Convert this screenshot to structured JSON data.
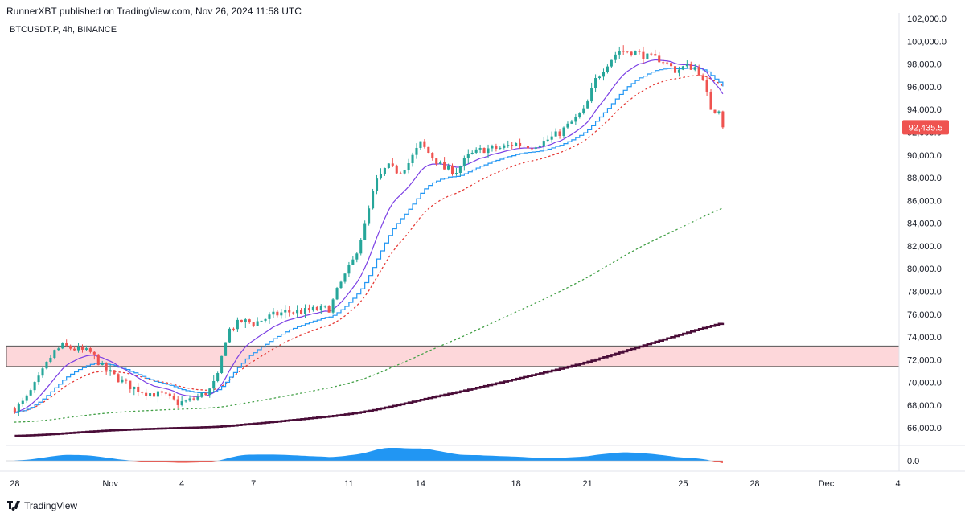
{
  "header": {
    "attribution": "RunnerXBT published on TradingView.com, Nov 26, 2024 11:58 UTC",
    "symbol": "BTCUSDT.P, 4h, BINANCE"
  },
  "footer": {
    "brand": "TradingView"
  },
  "colors": {
    "bull": "#26a69a",
    "bear": "#ef5350",
    "ema_fast": "#7b3fe4",
    "ema_step": "#2196f3",
    "dots_red": "#e53935",
    "dots_green": "#43a047",
    "long_ma": "#4a0d38",
    "zone_fill": "#fdd7da",
    "osc_pos": "#2196f3",
    "osc_neg": "#f44336",
    "price_tag": "#ef5350"
  },
  "chart_data": {
    "type": "line",
    "y_ticks": [
      "102,000.0",
      "100,000.0",
      "98,000.0",
      "96,000.0",
      "94,000.0",
      "92,000.0",
      "90,000.0",
      "88,000.0",
      "86,000.0",
      "84,000.0",
      "82,000.0",
      "80,000.0",
      "78,000.0",
      "76,000.0",
      "74,000.0",
      "72,000.0",
      "70,000.0",
      "68,000.0",
      "66,000.0"
    ],
    "ylim": [
      64600,
      102500
    ],
    "x_ticks": [
      {
        "label": "28",
        "day": 0
      },
      {
        "label": "Nov",
        "day": 4
      },
      {
        "label": "4",
        "day": 7
      },
      {
        "label": "7",
        "day": 10
      },
      {
        "label": "11",
        "day": 14
      },
      {
        "label": "14",
        "day": 17
      },
      {
        "label": "18",
        "day": 21
      },
      {
        "label": "21",
        "day": 24
      },
      {
        "label": "25",
        "day": 28
      },
      {
        "label": "28",
        "day": 31
      },
      {
        "label": "Dec",
        "day": 34
      },
      {
        "label": "4",
        "day": 37
      }
    ],
    "xlim_days": [
      -0.35,
      37.05
    ],
    "last_price": "92,435.5",
    "last_price_value": 92435.5,
    "osc_tick": "0.0",
    "zone": {
      "low": 71400,
      "high": 73200
    },
    "price_path": [
      [
        0,
        67700
      ],
      [
        0.4,
        68300
      ],
      [
        1.0,
        70300
      ],
      [
        1.6,
        72600
      ],
      [
        2.0,
        73200
      ],
      [
        2.6,
        72900
      ],
      [
        3.2,
        72600
      ],
      [
        3.7,
        71300
      ],
      [
        4.2,
        70500
      ],
      [
        4.8,
        69700
      ],
      [
        5.5,
        69100
      ],
      [
        6.2,
        68900
      ],
      [
        6.8,
        68200
      ],
      [
        7.2,
        68300
      ],
      [
        7.7,
        68700
      ],
      [
        8.2,
        69400
      ],
      [
        8.5,
        70500
      ],
      [
        8.9,
        74500
      ],
      [
        9.5,
        75400
      ],
      [
        10.0,
        75200
      ],
      [
        10.7,
        75800
      ],
      [
        11.3,
        76200
      ],
      [
        12.0,
        76200
      ],
      [
        12.6,
        76400
      ],
      [
        13.2,
        76500
      ],
      [
        13.6,
        78500
      ],
      [
        14.2,
        80800
      ],
      [
        14.7,
        84000
      ],
      [
        15.1,
        87500
      ],
      [
        15.6,
        89000
      ],
      [
        16.1,
        88500
      ],
      [
        16.5,
        89300
      ],
      [
        17.0,
        91000
      ],
      [
        17.5,
        89800
      ],
      [
        18.0,
        88800
      ],
      [
        18.5,
        88600
      ],
      [
        19.0,
        89900
      ],
      [
        19.6,
        90500
      ],
      [
        20.3,
        90600
      ],
      [
        21.0,
        91000
      ],
      [
        21.6,
        90800
      ],
      [
        22.2,
        91200
      ],
      [
        22.8,
        91900
      ],
      [
        23.3,
        92800
      ],
      [
        23.9,
        94000
      ],
      [
        24.3,
        96500
      ],
      [
        24.8,
        98000
      ],
      [
        25.3,
        99200
      ],
      [
        25.9,
        99100
      ],
      [
        26.5,
        98600
      ],
      [
        27.1,
        98400
      ],
      [
        27.7,
        97400
      ],
      [
        28.1,
        97800
      ],
      [
        28.6,
        97700
      ],
      [
        28.9,
        96000
      ],
      [
        29.2,
        93900
      ],
      [
        29.5,
        94100
      ],
      [
        29.7,
        92435
      ]
    ]
  }
}
